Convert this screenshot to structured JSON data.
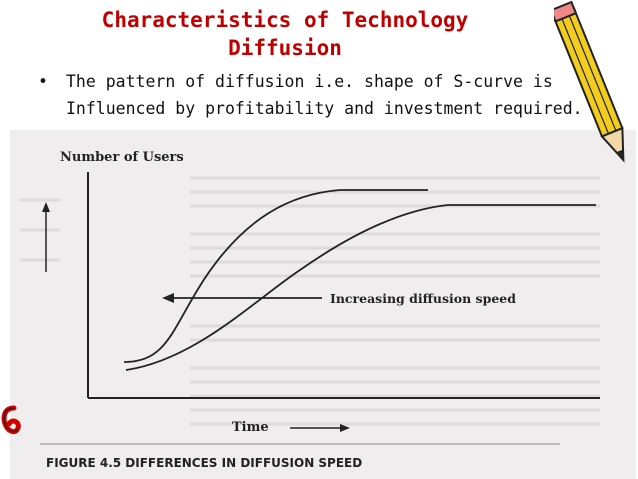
{
  "slide": {
    "title_line1": "Characteristics of Technology",
    "title_line2": "Diffusion",
    "bullet_text_line1": "The pattern of diffusion i.e. shape of S-curve is",
    "bullet_text_line2": "Influenced by profitability and  investment required."
  },
  "figure": {
    "y_axis_label": "Number of  Users",
    "x_axis_label": "Time",
    "arrow_label": "Increasing diffusion speed",
    "caption": "FIGURE 4.5 DIFFERENCES IN DIFFUSION SPEED"
  },
  "colors": {
    "title": "#c00000",
    "scan_background": "#efeded",
    "pencil_body": "#f2cc1e"
  },
  "icons": [
    "pencil-icon",
    "paperclip-icon"
  ]
}
